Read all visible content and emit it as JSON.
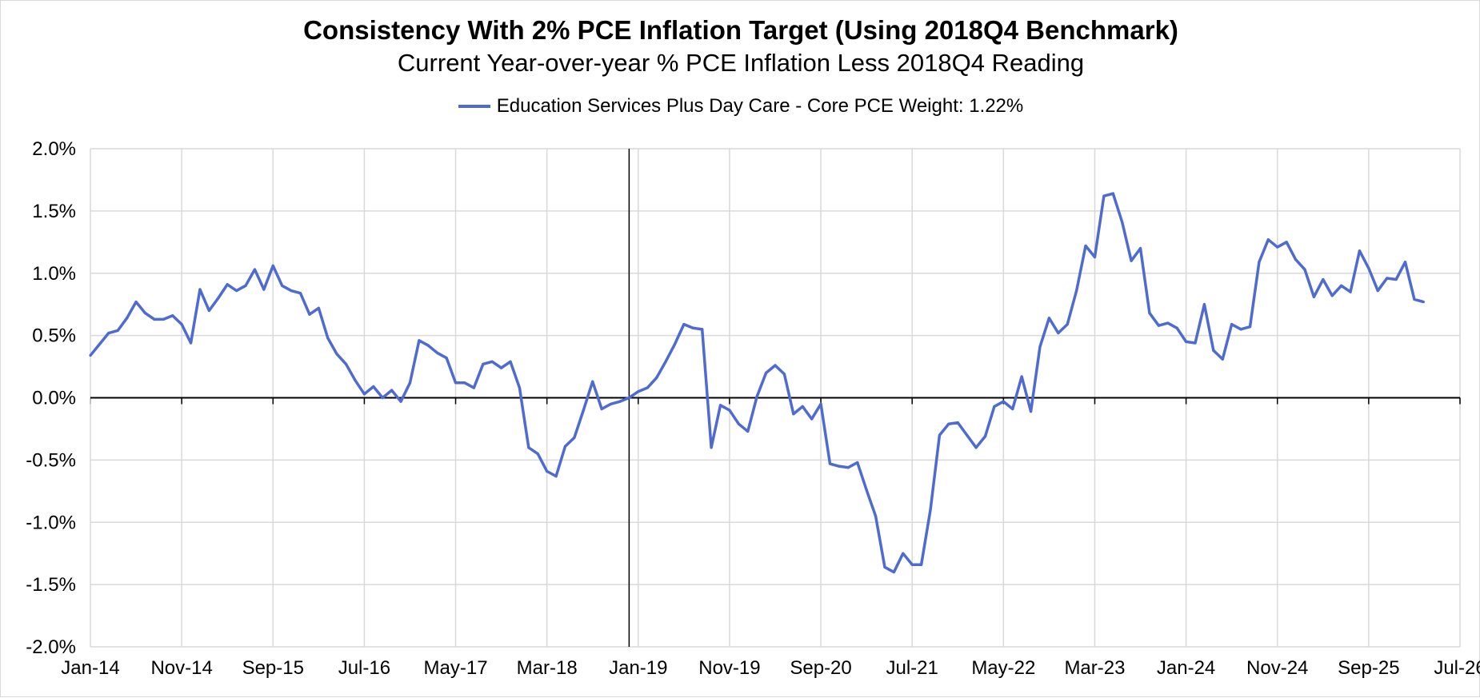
{
  "chart_data": {
    "type": "line",
    "title": "Consistency With 2% PCE Inflation Target (Using 2018Q4 Benchmark)",
    "subtitle": "Current Year-over-year % PCE Inflation Less 2018Q4 Reading",
    "xlabel": "",
    "ylabel": "",
    "ylim": [
      -2.0,
      2.0
    ],
    "y_ticks": [
      "2.0%",
      "1.5%",
      "1.0%",
      "0.5%",
      "0.0%",
      "-0.5%",
      "-1.0%",
      "-1.5%",
      "-2.0%"
    ],
    "y_tick_values": [
      2.0,
      1.5,
      1.0,
      0.5,
      0.0,
      -0.5,
      -1.0,
      -1.5,
      -2.0
    ],
    "x_ticks": [
      "Jan-14",
      "Nov-14",
      "Sep-15",
      "Jul-16",
      "May-17",
      "Mar-18",
      "Jan-19",
      "Nov-19",
      "Sep-20",
      "Jul-21",
      "May-22",
      "Mar-23",
      "Jan-24",
      "Nov-24",
      "Sep-25",
      "Jul-26"
    ],
    "x_start": "Jan-14",
    "x_end": "Jul-26",
    "benchmark_line": {
      "label": "2018Q4",
      "month_index": 59
    },
    "legend_position": "top-center",
    "color": "#4f6bd0",
    "series": [
      {
        "name": "Education Services Plus Day Care  - Core PCE Weight: 1.22%",
        "start": "Jan-14",
        "values": [
          0.34,
          0.43,
          0.52,
          0.54,
          0.64,
          0.77,
          0.68,
          0.63,
          0.63,
          0.66,
          0.59,
          0.44,
          0.87,
          0.7,
          0.8,
          0.91,
          0.86,
          0.9,
          1.03,
          0.87,
          1.06,
          0.9,
          0.86,
          0.84,
          0.67,
          0.72,
          0.48,
          0.35,
          0.27,
          0.14,
          0.03,
          0.09,
          0.0,
          0.06,
          -0.03,
          0.12,
          0.46,
          0.42,
          0.36,
          0.32,
          0.12,
          0.12,
          0.08,
          0.27,
          0.29,
          0.24,
          0.29,
          0.08,
          -0.4,
          -0.45,
          -0.59,
          -0.63,
          -0.39,
          -0.32,
          -0.1,
          0.13,
          -0.09,
          -0.05,
          -0.03,
          0.0,
          0.05,
          0.08,
          0.16,
          0.29,
          0.43,
          0.59,
          0.56,
          0.55,
          -0.4,
          -0.06,
          -0.1,
          -0.21,
          -0.27,
          0.01,
          0.2,
          0.26,
          0.19,
          -0.13,
          -0.07,
          -0.17,
          -0.05,
          -0.53,
          -0.55,
          -0.56,
          -0.52,
          -0.74,
          -0.95,
          -1.36,
          -1.4,
          -1.25,
          -1.34,
          -1.34,
          -0.9,
          -0.3,
          -0.21,
          -0.2,
          -0.3,
          -0.4,
          -0.31,
          -0.07,
          -0.03,
          -0.09,
          0.17,
          -0.11,
          0.41,
          0.64,
          0.52,
          0.59,
          0.86,
          1.22,
          1.13,
          1.62,
          1.64,
          1.41,
          1.1,
          1.2,
          0.68,
          0.58,
          0.6,
          0.56,
          0.45,
          0.44,
          0.75,
          0.38,
          0.31,
          0.59,
          0.55,
          0.57,
          1.09,
          1.27,
          1.21,
          1.25,
          1.11,
          1.03,
          0.81,
          0.95,
          0.82,
          0.9,
          0.85,
          1.18,
          1.04,
          0.86,
          0.96,
          0.95,
          1.09,
          0.79,
          0.77
        ]
      }
    ]
  }
}
